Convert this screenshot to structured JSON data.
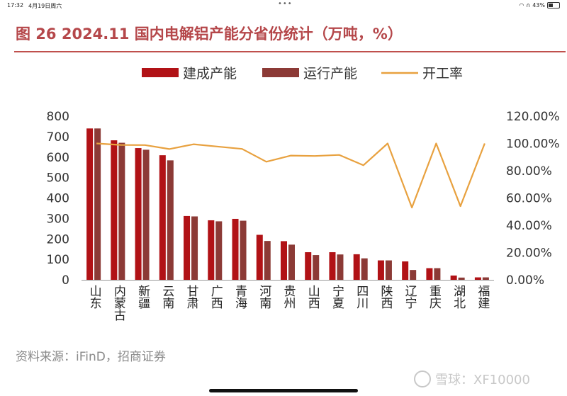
{
  "status_bar": {
    "time": "17:32",
    "date": "4月19日周六",
    "battery": "43%",
    "battery_level": 0.43
  },
  "figure": {
    "title": "图 26 2024.11 国内电解铝产能分省份统计（万吨，%）",
    "source": "资料来源：iFinD，招商证券",
    "watermark": "雪球：XF10000"
  },
  "colors": {
    "accent": "#c0504d",
    "bar_built": "#b11216",
    "bar_running": "#8c3a36",
    "line": "#e8a13f"
  },
  "chart_data": {
    "type": "bar",
    "categories": [
      "山东",
      "内蒙古",
      "新疆",
      "云南",
      "甘肃",
      "广西",
      "青海",
      "河南",
      "贵州",
      "山西",
      "宁夏",
      "四川",
      "陕西",
      "辽宁",
      "重庆",
      "湖北",
      "福建"
    ],
    "series": [
      {
        "name": "建成产能",
        "kind": "bar",
        "axis": "left",
        "values": [
          740,
          682,
          644,
          609,
          312,
          291,
          298,
          220,
          189,
          135,
          135,
          125,
          95,
          90,
          57,
          21,
          12
        ]
      },
      {
        "name": "运行产能",
        "kind": "bar",
        "axis": "left",
        "values": [
          740,
          670,
          636,
          584,
          310,
          286,
          289,
          190,
          172,
          121,
          124,
          105,
          95,
          48,
          57,
          11,
          12
        ]
      },
      {
        "name": "开工率",
        "kind": "line",
        "axis": "right",
        "values": [
          100.0,
          98.9,
          98.8,
          95.9,
          99.4,
          97.7,
          96.0,
          86.6,
          91.1,
          90.8,
          91.6,
          84.0,
          100.0,
          53.0,
          100.0,
          54.0,
          100.0
        ]
      }
    ],
    "y_left": {
      "min": 0,
      "max": 800,
      "ticks": [
        "0",
        "100",
        "200",
        "300",
        "400",
        "500",
        "600",
        "700",
        "800"
      ]
    },
    "y_right": {
      "min": 0,
      "max": 120,
      "ticks": [
        "0.00%",
        "20.00%",
        "40.00%",
        "60.00%",
        "80.00%",
        "100.00%",
        "120.00%"
      ]
    },
    "legend_position": "top",
    "grid": false
  }
}
